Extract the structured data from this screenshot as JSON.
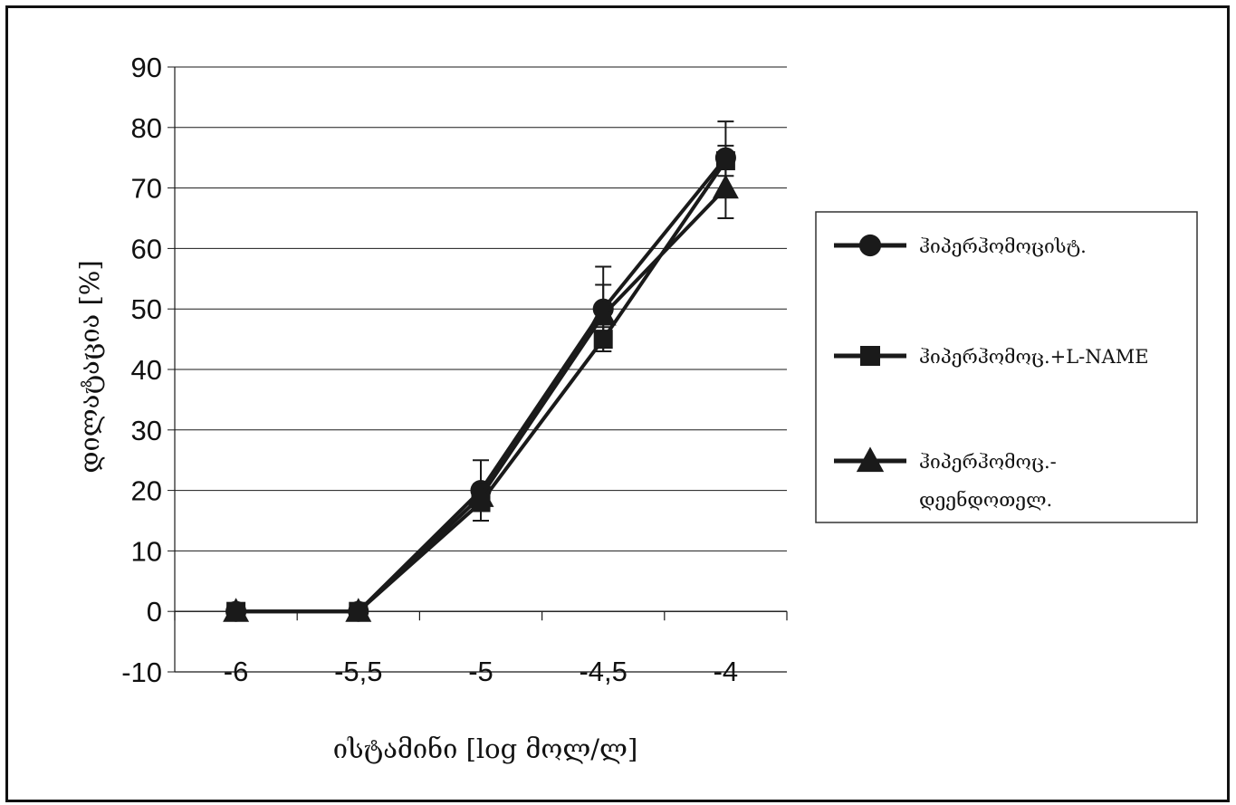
{
  "chart_data": {
    "type": "line",
    "title": "",
    "xlabel": "ისტამინი [log მოლ/ლ]",
    "ylabel": "დილატაცია [%]",
    "categories": [
      "-6",
      "-5,5",
      "-5",
      "-4,5",
      "-4"
    ],
    "ylim": [
      -10,
      90
    ],
    "yticks": [
      "-10",
      "0",
      "10",
      "20",
      "30",
      "40",
      "50",
      "60",
      "70",
      "80",
      "90"
    ],
    "grid": true,
    "legend_position": "right",
    "series": [
      {
        "name": "ჰიპერჰომოცისტ.",
        "marker": "circle",
        "values": [
          0,
          0,
          20,
          50,
          75
        ],
        "error": [
          0,
          0,
          5,
          7,
          6
        ]
      },
      {
        "name": "ჰიპერჰომოც.+L-NAME",
        "marker": "square",
        "values": [
          0,
          0,
          18,
          45,
          74.5
        ],
        "error": [
          0,
          0,
          3,
          2,
          2.5
        ]
      },
      {
        "name_lines": [
          "ჰიპერჰომოც.-",
          "დეენდოთელ."
        ],
        "marker": "triangle",
        "values": [
          0,
          0,
          19,
          49,
          70
        ],
        "error": [
          0,
          0,
          2,
          5,
          5
        ]
      }
    ]
  },
  "colors": {
    "line": "#1a1a1a",
    "grid": "#1a1a1a",
    "border": "#111111"
  }
}
